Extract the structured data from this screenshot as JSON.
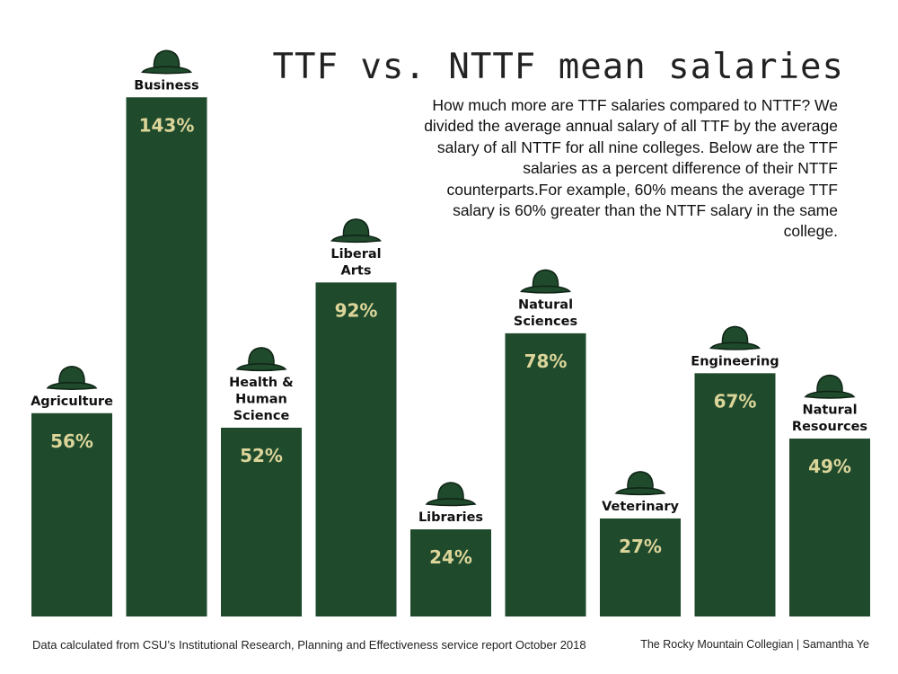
{
  "title": "TTF vs. NTTF mean salaries",
  "description": "How much more are TTF salaries compared to NTTF? We divided the average annual salary of all TTF by the average salary of all NTTF for all nine colleges. Below are the TTF salaries as a percent difference of their NTTF counterparts.For example, 60% means the average TTF salary is 60% greater than the NTTF salary in the same college.",
  "source": "Data calculated from CSU’s Institutional Research, Planning and Effectiveness service report October 2018",
  "credit": "The Rocky Mountain Collegian | Samantha Ye",
  "colors": {
    "bar": "#1f4a2c",
    "value_label": "#dcd59a"
  },
  "icon": "hat-icon",
  "chart_data": {
    "type": "bar",
    "title": "TTF vs. NTTF mean salaries",
    "xlabel": "",
    "ylabel": "",
    "unit": "%",
    "ylim": [
      0,
      150
    ],
    "grid": false,
    "categories": [
      "Agriculture",
      "Business",
      "Health & Human Science",
      "Liberal Arts",
      "Libraries",
      "Natural Sciences",
      "Veterinary",
      "Engineering",
      "Natural Resources"
    ],
    "category_lines": [
      [
        "Agriculture"
      ],
      [
        "Business"
      ],
      [
        "Health &",
        "Human",
        "Science"
      ],
      [
        "Liberal",
        "Arts"
      ],
      [
        "Libraries"
      ],
      [
        "Natural",
        "Sciences"
      ],
      [
        "Veterinary"
      ],
      [
        "Engineering"
      ],
      [
        "Natural",
        "Resources"
      ]
    ],
    "values": [
      56,
      143,
      52,
      92,
      24,
      78,
      27,
      67,
      49
    ],
    "value_labels": [
      "56%",
      "143%",
      "52%",
      "92%",
      "24%",
      "78%",
      "27%",
      "67%",
      "49%"
    ]
  }
}
